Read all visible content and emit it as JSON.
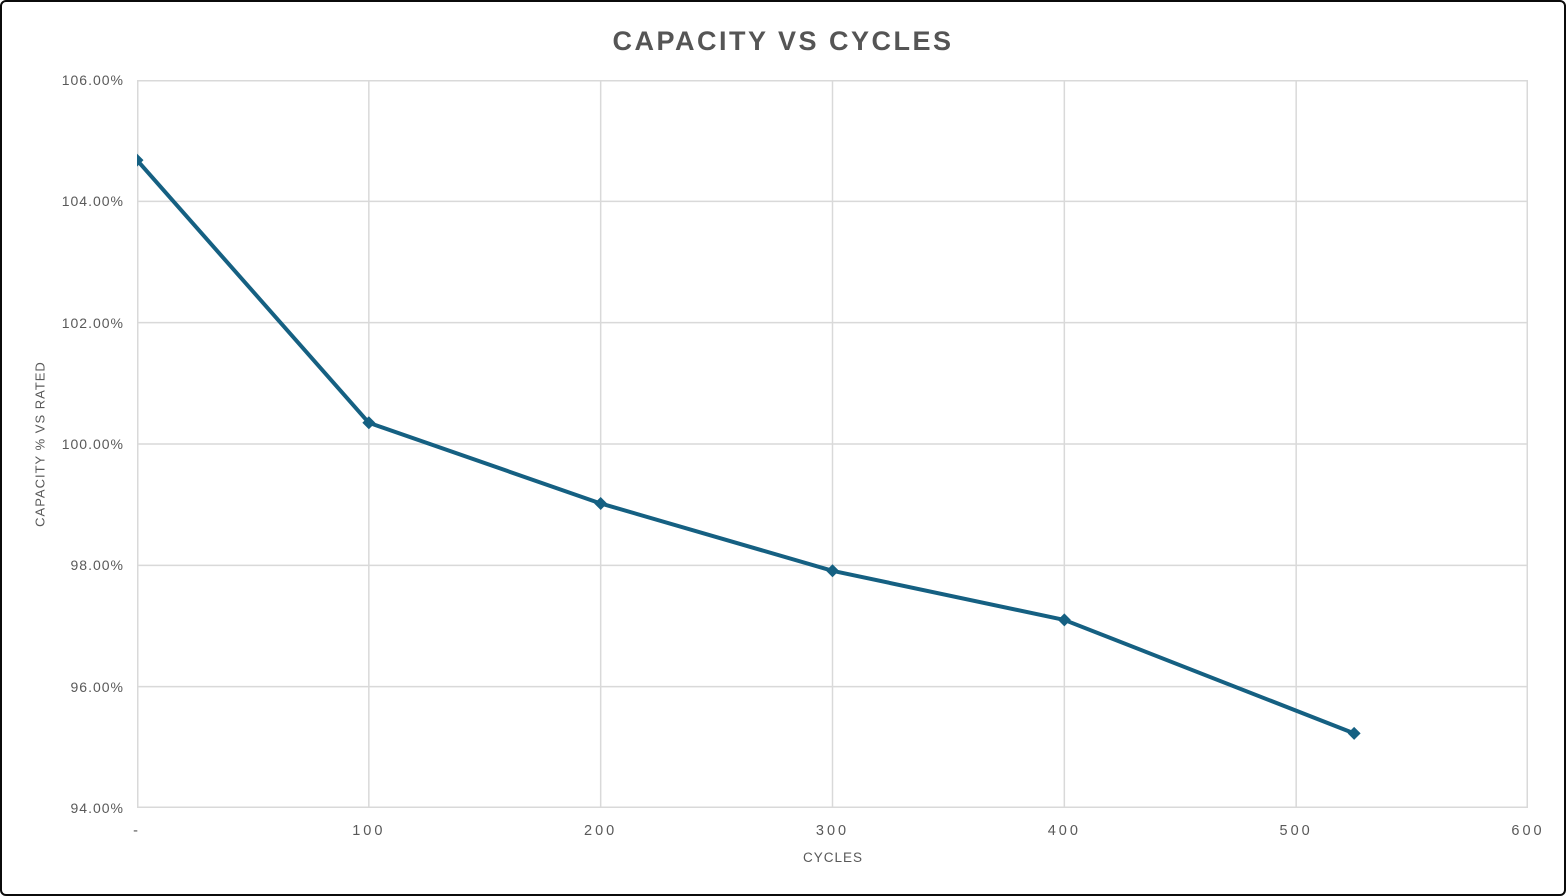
{
  "chart_data": {
    "type": "line",
    "title": "CAPACITY VS CYCLES",
    "xlabel": "CYCLES",
    "ylabel": "CAPACITY % VS RATED",
    "xlim": [
      0,
      600
    ],
    "ylim": [
      94,
      106
    ],
    "grid": true,
    "legend": "none",
    "line_color": "#156082",
    "grid_color": "#D9D9D9",
    "text_color": "#595959",
    "marker": "diamond",
    "series": [
      {
        "name": "Capacity % vs Rated",
        "x": [
          0,
          100,
          200,
          300,
          400,
          525
        ],
        "y": [
          104.68,
          100.35,
          99.02,
          97.91,
          97.1,
          95.23
        ]
      }
    ],
    "x_ticks": [
      {
        "value": 0,
        "label": "-"
      },
      {
        "value": 100,
        "label": "100"
      },
      {
        "value": 200,
        "label": "200"
      },
      {
        "value": 300,
        "label": "300"
      },
      {
        "value": 400,
        "label": "400"
      },
      {
        "value": 500,
        "label": "500"
      },
      {
        "value": 600,
        "label": "600"
      }
    ],
    "y_ticks": [
      {
        "value": 94,
        "label": "94.00%"
      },
      {
        "value": 96,
        "label": "96.00%"
      },
      {
        "value": 98,
        "label": "98.00%"
      },
      {
        "value": 100,
        "label": "100.00%"
      },
      {
        "value": 102,
        "label": "102.00%"
      },
      {
        "value": 104,
        "label": "104.00%"
      },
      {
        "value": 106,
        "label": "106.00%"
      }
    ]
  }
}
